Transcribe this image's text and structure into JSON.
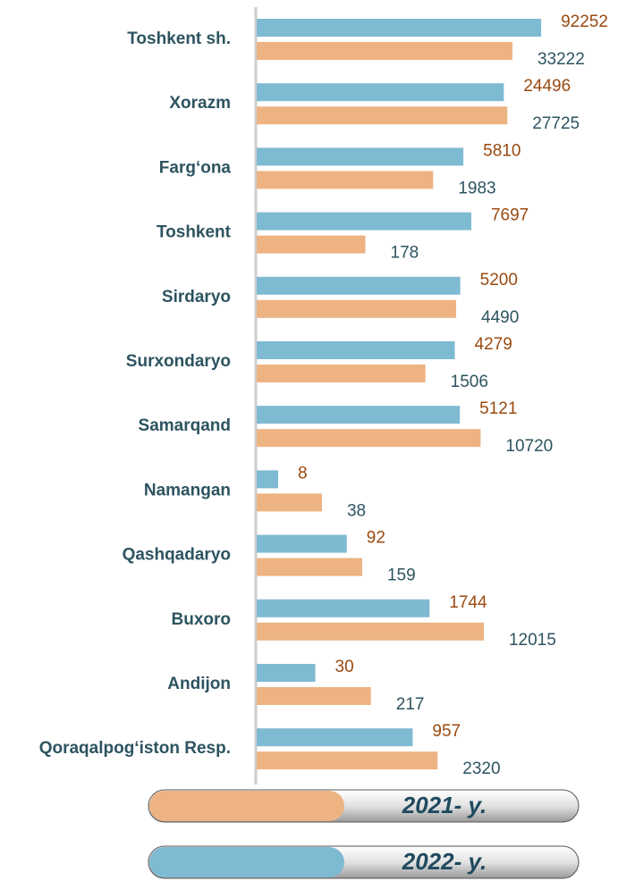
{
  "chart_data": {
    "type": "bar",
    "categories": [
      "Toshkent sh.",
      "Xorazm",
      "Farg‘ona",
      "Toshkent",
      "Sirdaryo",
      "Surxondaryo",
      "Samarqand",
      "Namangan",
      "Qashqadaryo",
      "Buxoro",
      "Andijon",
      "Qoraqalpog‘iston Resp."
    ],
    "series": [
      {
        "name": "2021- y.",
        "color": "#edb383",
        "values": [
          33222,
          27725,
          1983,
          178,
          4490,
          1506,
          10720,
          38,
          159,
          12015,
          217,
          2320
        ]
      },
      {
        "name": "2022- y.",
        "color": "#7fbad3",
        "values": [
          92252,
          24496,
          5810,
          7697,
          5200,
          4279,
          5121,
          8,
          92,
          1744,
          30,
          957
        ]
      }
    ]
  }
}
